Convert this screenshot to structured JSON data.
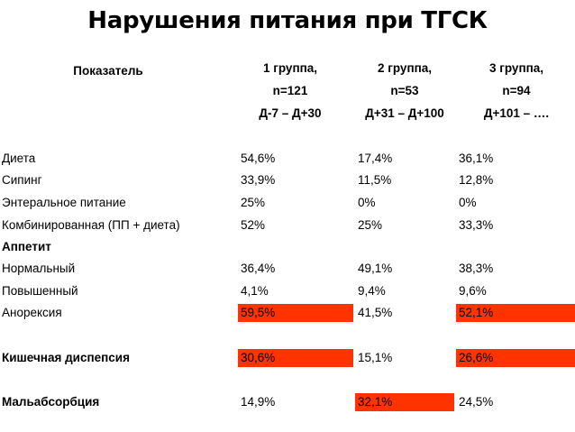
{
  "title": "Нарушения питания при ТГСК",
  "header": {
    "indicator": "Показатель",
    "groups": [
      {
        "name": "1 группа,",
        "n": "n=121",
        "range": "Д-7 – Д+30"
      },
      {
        "name": "2 группа,",
        "n": "n=53",
        "range": "Д+31 – Д+100"
      },
      {
        "name": "3 группа,",
        "n": "n=94",
        "range": "Д+101 – …."
      }
    ]
  },
  "rows": [
    {
      "label": "Диета",
      "bold": false,
      "values": [
        "54,6%",
        "17,4%",
        "36,1%"
      ],
      "highlight": [
        false,
        false,
        false
      ]
    },
    {
      "label": "Сипинг",
      "bold": false,
      "values": [
        "33,9%",
        "11,5%",
        "12,8%"
      ],
      "highlight": [
        false,
        false,
        false
      ]
    },
    {
      "label": "Энтеральное питание",
      "bold": false,
      "values": [
        "25%",
        "0%",
        "0%"
      ],
      "highlight": [
        false,
        false,
        false
      ]
    },
    {
      "label": "Комбинированная (ПП + диета)",
      "bold": false,
      "values": [
        "52%",
        "25%",
        "33,3%"
      ],
      "highlight": [
        false,
        false,
        false
      ]
    },
    {
      "label": "Аппетит",
      "bold": true,
      "values": [
        "",
        "",
        ""
      ],
      "highlight": [
        false,
        false,
        false
      ]
    },
    {
      "label": "Нормальный",
      "bold": false,
      "values": [
        "36,4%",
        "49,1%",
        "38,3%"
      ],
      "highlight": [
        false,
        false,
        false
      ]
    },
    {
      "label": "Повышенный",
      "bold": false,
      "values": [
        "4,1%",
        "9,4%",
        "9,6%"
      ],
      "highlight": [
        false,
        false,
        false
      ]
    },
    {
      "label": "Анорексия",
      "bold": false,
      "values": [
        "59,5%",
        "41,5%",
        "52,1%"
      ],
      "highlight": [
        true,
        false,
        true
      ]
    },
    {
      "label": "Кишечная диспепсия",
      "bold": true,
      "values": [
        "30,6%",
        "15,1%",
        "26,6%"
      ],
      "highlight": [
        true,
        false,
        true
      ]
    },
    {
      "label": "Мальабсорбция",
      "bold": true,
      "values": [
        "14,9%",
        "32,1%",
        "24,5%"
      ],
      "highlight": [
        false,
        true,
        false
      ]
    }
  ],
  "colors": {
    "highlight": "#ff3300"
  }
}
